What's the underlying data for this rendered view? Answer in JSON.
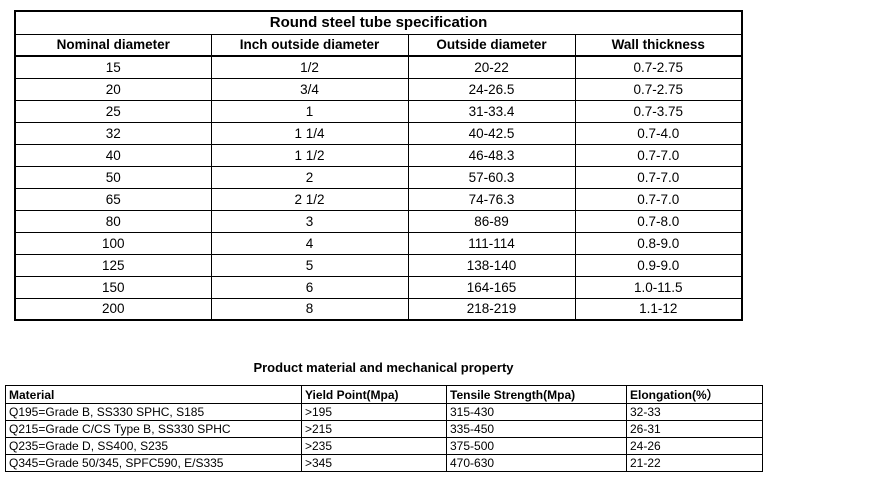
{
  "spec_table": {
    "title": "Round steel tube specification",
    "headers": [
      "Nominal diameter",
      "Inch outside diameter",
      "Outside diameter",
      "Wall thickness"
    ],
    "rows": [
      [
        "15",
        "1/2",
        "20-22",
        "0.7-2.75"
      ],
      [
        "20",
        "3/4",
        "24-26.5",
        "0.7-2.75"
      ],
      [
        "25",
        "1",
        "31-33.4",
        "0.7-3.75"
      ],
      [
        "32",
        "1 1/4",
        "40-42.5",
        "0.7-4.0"
      ],
      [
        "40",
        "1 1/2",
        "46-48.3",
        "0.7-7.0"
      ],
      [
        "50",
        "2",
        "57-60.3",
        "0.7-7.0"
      ],
      [
        "65",
        "2 1/2",
        "74-76.3",
        "0.7-7.0"
      ],
      [
        "80",
        "3",
        "86-89",
        "0.7-8.0"
      ],
      [
        "100",
        "4",
        "111-114",
        "0.8-9.0"
      ],
      [
        "125",
        "5",
        "138-140",
        "0.9-9.0"
      ],
      [
        "150",
        "6",
        "164-165",
        "1.0-11.5"
      ],
      [
        "200",
        "8",
        "218-219",
        "1.1-12"
      ]
    ]
  },
  "material_table": {
    "title": "Product material and mechanical property",
    "headers": [
      "Material",
      "Yield Point(Mpa)",
      "Tensile Strength(Mpa)",
      "Elongation(%）"
    ],
    "rows": [
      [
        "Q195=Grade B, SS330 SPHC, S185",
        ">195",
        "315-430",
        "32-33"
      ],
      [
        "Q215=Grade C/CS Type B, SS330 SPHC",
        ">215",
        "335-450",
        "26-31"
      ],
      [
        "Q235=Grade D, SS400, S235",
        ">235",
        "375-500",
        "24-26"
      ],
      [
        "Q345=Grade 50/345, SPFC590, E/S335",
        ">345",
        "470-630",
        "21-22"
      ]
    ]
  }
}
